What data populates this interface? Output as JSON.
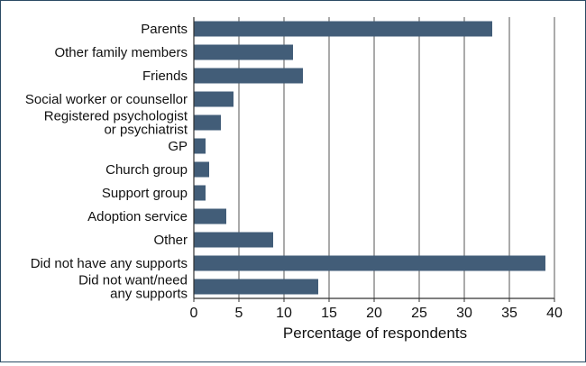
{
  "chart_data": {
    "type": "bar",
    "orientation": "horizontal",
    "categories": [
      [
        "Parents"
      ],
      [
        "Other family members"
      ],
      [
        "Friends"
      ],
      [
        "Social worker or counsellor"
      ],
      [
        "Registered psychologist",
        "or psychiatrist"
      ],
      [
        "GP"
      ],
      [
        "Church group"
      ],
      [
        "Support group"
      ],
      [
        "Adoption service"
      ],
      [
        "Other"
      ],
      [
        "Did not have any supports"
      ],
      [
        "Did not want/need",
        "any supports"
      ]
    ],
    "values": [
      33.1,
      11.0,
      12.1,
      4.4,
      3.0,
      1.3,
      1.7,
      1.3,
      3.6,
      8.8,
      39.0,
      13.8
    ],
    "xlabel": "Percentage of respondents",
    "ylabel": "",
    "xlim": [
      0,
      40
    ],
    "xticks": [
      0,
      5,
      10,
      15,
      20,
      25,
      30,
      35,
      40
    ],
    "grid": "vertical",
    "bar_color": "#425d78",
    "grid_color": "#555555",
    "frame_color": "#2b4a64"
  }
}
